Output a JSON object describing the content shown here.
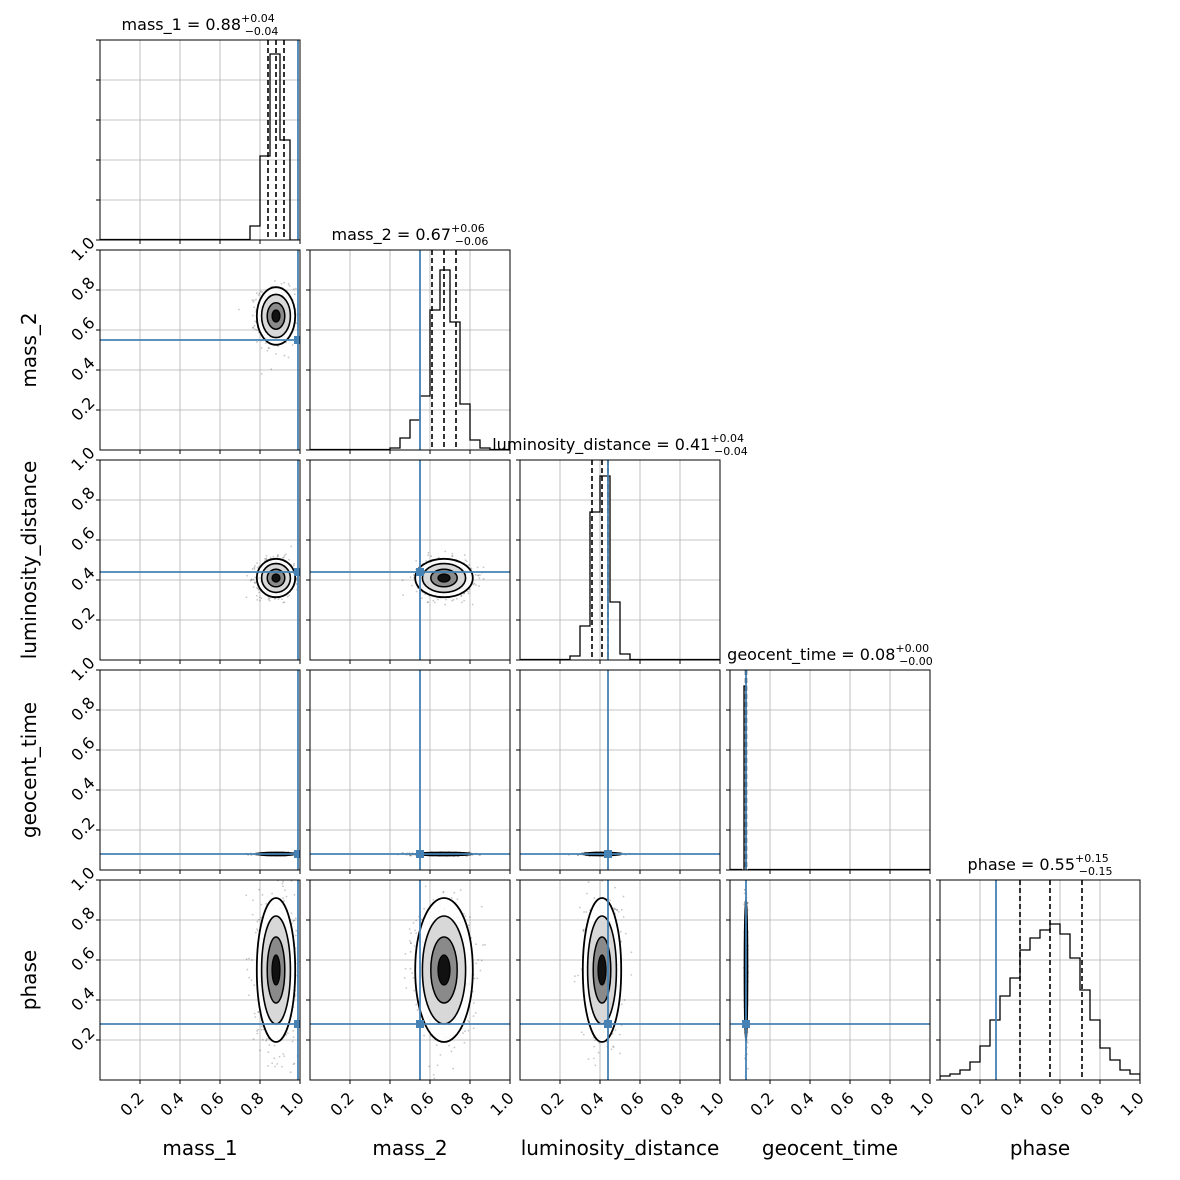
{
  "chart_data": {
    "type": "corner",
    "parameters": [
      "mass_1",
      "mass_2",
      "luminosity_distance",
      "geocent_time",
      "phase"
    ],
    "axis_range": [
      0,
      1
    ],
    "ticks": [
      0.2,
      0.4,
      0.6,
      0.8,
      1.0
    ],
    "tick_labels": [
      "0.2",
      "0.4",
      "0.6",
      "0.8",
      "1.0"
    ],
    "grid": true,
    "truth_color": "#4682b4",
    "truths": {
      "mass_1": 0.99,
      "mass_2": 0.55,
      "luminosity_distance": 0.44,
      "geocent_time": 0.08,
      "phase": 0.28
    },
    "titles": {
      "mass_1": {
        "name": "mass_1",
        "median": "0.88",
        "plus": "+0.04",
        "minus": "−0.04"
      },
      "mass_2": {
        "name": "mass_2",
        "median": "0.67",
        "plus": "+0.06",
        "minus": "−0.06"
      },
      "luminosity_distance": {
        "name": "luminosity_distance",
        "median": "0.41",
        "plus": "+0.04",
        "minus": "−0.04"
      },
      "geocent_time": {
        "name": "geocent_time",
        "median": "0.08",
        "plus": "+0.00",
        "minus": "−0.00"
      },
      "phase": {
        "name": "phase",
        "median": "0.55",
        "plus": "+0.15",
        "minus": "−0.15"
      }
    },
    "quantiles": {
      "mass_1": [
        0.84,
        0.88,
        0.92
      ],
      "mass_2": [
        0.61,
        0.67,
        0.73
      ],
      "luminosity_distance": [
        0.36,
        0.41,
        0.44
      ],
      "geocent_time": [
        0.078,
        0.08,
        0.082
      ],
      "phase": [
        0.4,
        0.55,
        0.71
      ]
    },
    "posterior": {
      "mass_1": {
        "mean": 0.88,
        "sd": 0.04
      },
      "mass_2": {
        "mean": 0.67,
        "sd": 0.06
      },
      "luminosity_distance": {
        "mean": 0.41,
        "sd": 0.04
      },
      "geocent_time": {
        "mean": 0.08,
        "sd": 0.003
      },
      "phase": {
        "mean": 0.55,
        "sd": 0.15
      }
    },
    "histograms": {
      "mass_1": {
        "edges": [
          0.75,
          0.8,
          0.85,
          0.9,
          0.95,
          1.0
        ],
        "counts": [
          0.07,
          0.42,
          0.93,
          0.5,
          0.0
        ]
      },
      "mass_2": {
        "edges": [
          0.4,
          0.45,
          0.5,
          0.55,
          0.6,
          0.65,
          0.7,
          0.75,
          0.8,
          0.85,
          0.9
        ],
        "counts": [
          0.01,
          0.06,
          0.15,
          0.27,
          0.7,
          0.9,
          0.64,
          0.23,
          0.05,
          0.01
        ]
      },
      "luminosity_distance": {
        "edges": [
          0.25,
          0.3,
          0.35,
          0.4,
          0.45,
          0.5,
          0.55
        ],
        "counts": [
          0.02,
          0.17,
          0.74,
          0.92,
          0.29,
          0.03
        ]
      },
      "geocent_time": {
        "edges": [
          0.06,
          0.07,
          0.08,
          0.09
        ],
        "counts": [
          0.0,
          0.92,
          0.0
        ]
      },
      "phase": {
        "edges": [
          0.0,
          0.05,
          0.1,
          0.15,
          0.2,
          0.25,
          0.3,
          0.35,
          0.4,
          0.45,
          0.5,
          0.55,
          0.6,
          0.65,
          0.7,
          0.75,
          0.8,
          0.85,
          0.9,
          0.95,
          1.0
        ],
        "counts": [
          0.02,
          0.03,
          0.05,
          0.09,
          0.17,
          0.3,
          0.42,
          0.51,
          0.65,
          0.71,
          0.75,
          0.78,
          0.73,
          0.61,
          0.45,
          0.3,
          0.16,
          0.1,
          0.05,
          0.03
        ]
      }
    }
  }
}
